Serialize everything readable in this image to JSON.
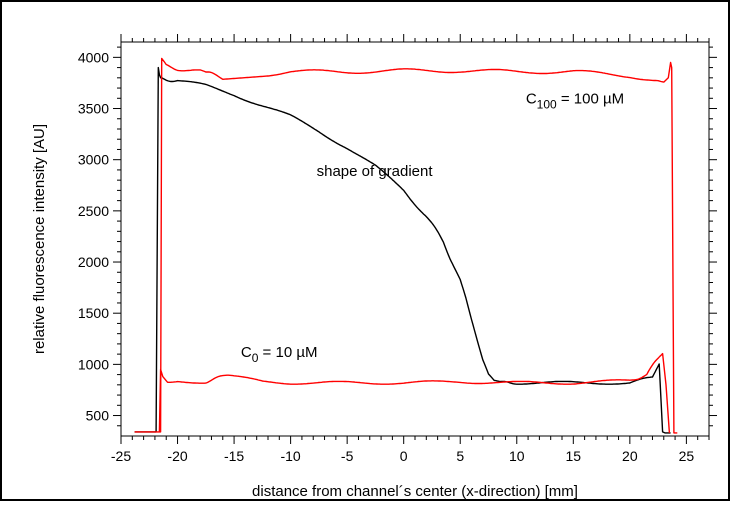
{
  "chart_data": {
    "type": "line",
    "title": "",
    "xlabel": "distance from channel´s center (x-direction) [mm]",
    "ylabel": "relative fluorescence intensity [AU]",
    "xlim": [
      -25,
      27
    ],
    "ylim": [
      300,
      4150
    ],
    "x_ticks": [
      -25,
      -20,
      -15,
      -10,
      -5,
      0,
      5,
      10,
      15,
      20,
      25
    ],
    "y_ticks": [
      500,
      1000,
      1500,
      2000,
      2500,
      3000,
      3500,
      4000
    ],
    "grid": false,
    "legend": "none",
    "annotations": {
      "gradient": "shape of gradient",
      "c100_main": "C",
      "c100_sub": "100",
      "c100_rest": " = 100 µM",
      "c0_main": "C",
      "c0_sub": "0",
      "c0_rest": " = 10 µM"
    },
    "series": [
      {
        "color": "#000000",
        "x": [
          -23.8,
          -21.9,
          -21.7,
          -21.6,
          -21.5,
          -20,
          -17.5,
          -15,
          -12.5,
          -10,
          -7.5,
          -5,
          -2.5,
          0,
          2,
          3.5,
          5,
          5.5,
          6,
          6.5,
          7,
          7.5,
          8,
          8.5,
          10,
          15,
          20,
          22,
          22.6,
          22.9,
          23.1,
          23.6
        ],
        "y": [
          340,
          340,
          3900,
          3830,
          3800,
          3770,
          3720,
          3640,
          3530,
          3420,
          3280,
          3120,
          2930,
          2700,
          2450,
          2200,
          1820,
          1650,
          1450,
          1250,
          1050,
          900,
          830,
          820,
          820,
          820,
          820,
          870,
          1000,
          340,
          330,
          330
        ]
      },
      {
        "color": "#ff0000",
        "x": [
          -23.8,
          -21.5,
          -21.4,
          -21.2,
          -21,
          -20,
          -18,
          -17.5,
          -16,
          -12.5,
          -10,
          -5,
          0,
          5,
          10,
          15,
          20,
          22.5,
          23,
          23.4,
          23.6,
          23.7,
          23.9,
          24.2
        ],
        "y": [
          340,
          340,
          3990,
          3960,
          3930,
          3890,
          3860,
          3850,
          3800,
          3830,
          3860,
          3860,
          3870,
          3870,
          3860,
          3860,
          3820,
          3770,
          3770,
          3800,
          3950,
          3900,
          330,
          330
        ]
      },
      {
        "color": "#ff0000",
        "x": [
          -21.6,
          -21.5,
          -21.3,
          -21,
          -20,
          -17.5,
          -16,
          -15,
          -12.5,
          -10,
          -5,
          0,
          5,
          10,
          15,
          20,
          21.5,
          22.3,
          22.9,
          23.2,
          23.5
        ],
        "y": [
          340,
          950,
          880,
          840,
          830,
          830,
          880,
          880,
          830,
          820,
          820,
          820,
          830,
          820,
          820,
          840,
          900,
          1030,
          1100,
          800,
          330
        ]
      }
    ]
  }
}
